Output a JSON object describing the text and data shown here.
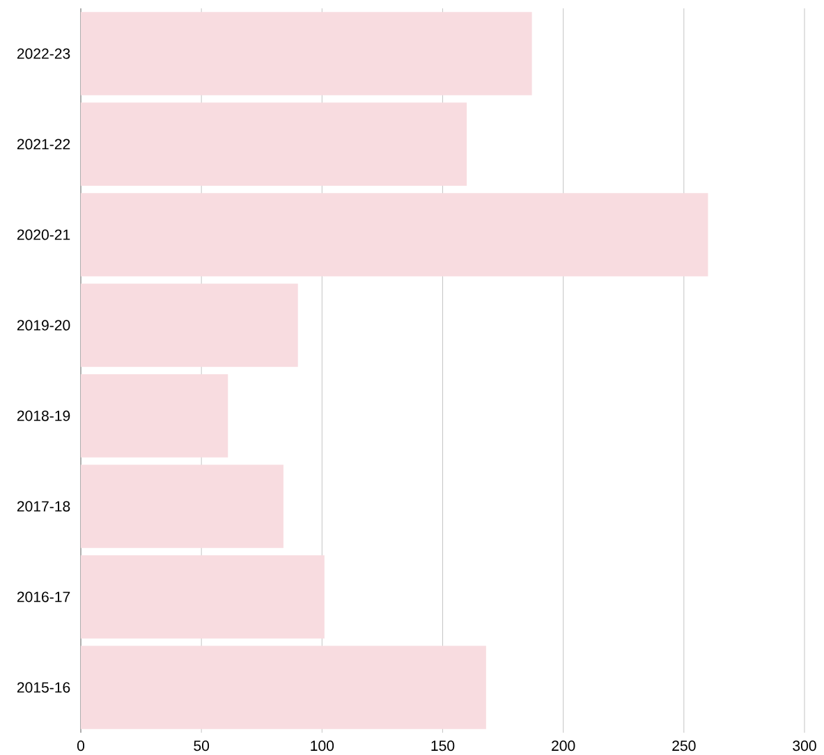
{
  "chart_data": {
    "type": "bar",
    "orientation": "horizontal",
    "categories": [
      "2022-23",
      "2021-22",
      "2020-21",
      "2019-20",
      "2018-19",
      "2017-18",
      "2016-17",
      "2015-16"
    ],
    "values": [
      187,
      160,
      260,
      90,
      61,
      84,
      101,
      168
    ],
    "color": "#f8dce0",
    "xlim": [
      0,
      300
    ],
    "xticks": [
      0,
      50,
      100,
      150,
      200,
      250,
      300
    ],
    "grid": "x"
  }
}
